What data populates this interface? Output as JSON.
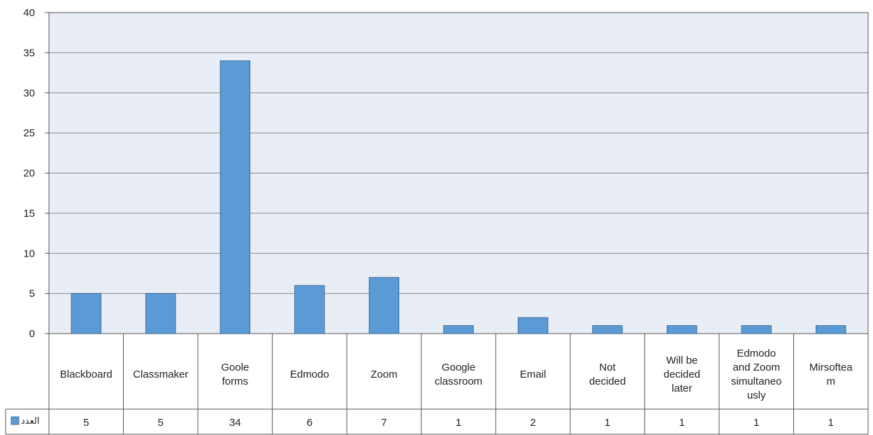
{
  "chart_data": {
    "type": "bar",
    "categories": [
      "Blackboard",
      "Classmaker",
      "Goole forms",
      "Edmodo",
      "Zoom",
      "Google classroom",
      "Email",
      "Not decided",
      "Will be decided later",
      "Edmodo and Zoom simultaneously",
      "Mirsofteam"
    ],
    "category_lines": [
      [
        "Blackboard"
      ],
      [
        "Classmaker"
      ],
      [
        "Goole",
        "forms"
      ],
      [
        "Edmodo"
      ],
      [
        "Zoom"
      ],
      [
        "Google",
        "classroom"
      ],
      [
        "Email"
      ],
      [
        "Not",
        "decided"
      ],
      [
        "Will be",
        "decided",
        "later"
      ],
      [
        "Edmodo",
        "and Zoom",
        "simultaneo",
        "usly"
      ],
      [
        "Mirsoftea",
        "m"
      ]
    ],
    "series": [
      {
        "name": "العدد",
        "values": [
          5,
          5,
          34,
          6,
          7,
          1,
          2,
          1,
          1,
          1,
          1
        ]
      }
    ],
    "y_ticks": [
      "0",
      "5",
      "10",
      "15",
      "20",
      "25",
      "30",
      "35",
      "40"
    ],
    "ylim": [
      0,
      40
    ],
    "y_tick_step": 5,
    "grid": true,
    "legend": "data-table-left",
    "colors": {
      "bar": "#5b9bd5",
      "bar_edge": "#2e5f8a",
      "plot_bg": "#e9edf5",
      "grid": "#8a8a8a",
      "border": "#555555"
    }
  }
}
